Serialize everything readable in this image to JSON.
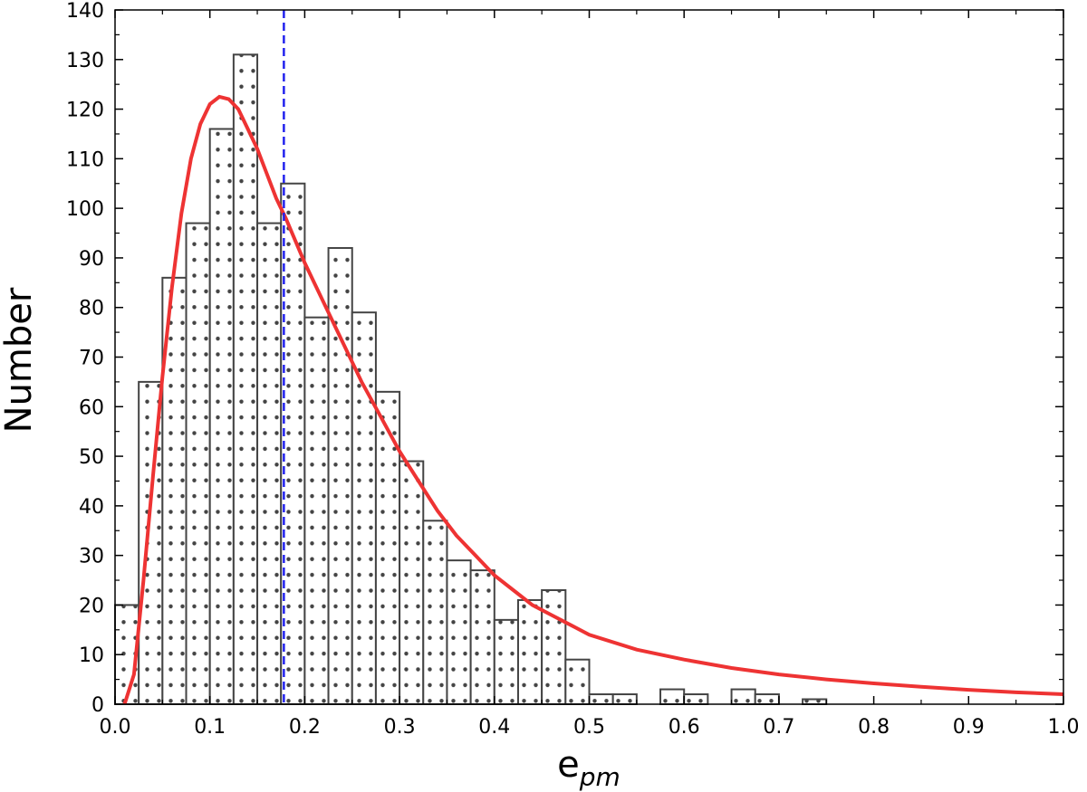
{
  "chart_data": {
    "type": "bar",
    "xlabel": "e",
    "xlabel_subscript": "pm",
    "ylabel": "Number",
    "xlim": [
      0.0,
      1.0
    ],
    "ylim": [
      0,
      140
    ],
    "x_ticks": [
      "0.0",
      "0.1",
      "0.2",
      "0.3",
      "0.4",
      "0.5",
      "0.6",
      "0.7",
      "0.8",
      "0.9",
      "1.0"
    ],
    "y_ticks": [
      "0",
      "10",
      "20",
      "30",
      "40",
      "50",
      "60",
      "70",
      "80",
      "90",
      "100",
      "110",
      "120",
      "130",
      "140"
    ],
    "grid": false,
    "bin_width": 0.025,
    "bins": [
      {
        "x0": 0.0,
        "count": 20
      },
      {
        "x0": 0.025,
        "count": 65
      },
      {
        "x0": 0.05,
        "count": 86
      },
      {
        "x0": 0.075,
        "count": 97
      },
      {
        "x0": 0.1,
        "count": 116
      },
      {
        "x0": 0.125,
        "count": 131
      },
      {
        "x0": 0.15,
        "count": 97
      },
      {
        "x0": 0.175,
        "count": 105
      },
      {
        "x0": 0.2,
        "count": 78
      },
      {
        "x0": 0.225,
        "count": 92
      },
      {
        "x0": 0.25,
        "count": 79
      },
      {
        "x0": 0.275,
        "count": 63
      },
      {
        "x0": 0.3,
        "count": 49
      },
      {
        "x0": 0.325,
        "count": 37
      },
      {
        "x0": 0.35,
        "count": 29
      },
      {
        "x0": 0.375,
        "count": 27
      },
      {
        "x0": 0.4,
        "count": 17
      },
      {
        "x0": 0.425,
        "count": 21
      },
      {
        "x0": 0.45,
        "count": 23
      },
      {
        "x0": 0.475,
        "count": 9
      },
      {
        "x0": 0.5,
        "count": 2
      },
      {
        "x0": 0.525,
        "count": 2
      },
      {
        "x0": 0.575,
        "count": 3
      },
      {
        "x0": 0.6,
        "count": 2
      },
      {
        "x0": 0.65,
        "count": 3
      },
      {
        "x0": 0.675,
        "count": 2
      },
      {
        "x0": 0.725,
        "count": 1
      }
    ],
    "fit_curve": {
      "color": "#ee3333",
      "points": [
        [
          0.01,
          0
        ],
        [
          0.02,
          6
        ],
        [
          0.03,
          25
        ],
        [
          0.04,
          46
        ],
        [
          0.05,
          66
        ],
        [
          0.06,
          84
        ],
        [
          0.07,
          99
        ],
        [
          0.08,
          110
        ],
        [
          0.09,
          117
        ],
        [
          0.1,
          121
        ],
        [
          0.11,
          122.5
        ],
        [
          0.12,
          122
        ],
        [
          0.13,
          120
        ],
        [
          0.14,
          116
        ],
        [
          0.15,
          112
        ],
        [
          0.16,
          107
        ],
        [
          0.17,
          102
        ],
        [
          0.18,
          98
        ],
        [
          0.2,
          89
        ],
        [
          0.22,
          81
        ],
        [
          0.24,
          73
        ],
        [
          0.26,
          65
        ],
        [
          0.28,
          58
        ],
        [
          0.3,
          51
        ],
        [
          0.32,
          45
        ],
        [
          0.34,
          39
        ],
        [
          0.36,
          34
        ],
        [
          0.38,
          30
        ],
        [
          0.4,
          26
        ],
        [
          0.42,
          23
        ],
        [
          0.44,
          20
        ],
        [
          0.46,
          18
        ],
        [
          0.48,
          16
        ],
        [
          0.5,
          14
        ],
        [
          0.55,
          11
        ],
        [
          0.6,
          9
        ],
        [
          0.65,
          7.3
        ],
        [
          0.7,
          6
        ],
        [
          0.75,
          5
        ],
        [
          0.8,
          4.2
        ],
        [
          0.85,
          3.5
        ],
        [
          0.9,
          2.9
        ],
        [
          0.95,
          2.4
        ],
        [
          1.0,
          2
        ]
      ]
    },
    "vertical_line": {
      "x": 0.178,
      "color": "#2222ee",
      "style": "dashed"
    },
    "bar_fill_pattern": "dots",
    "bar_edge_color": "#444444"
  }
}
